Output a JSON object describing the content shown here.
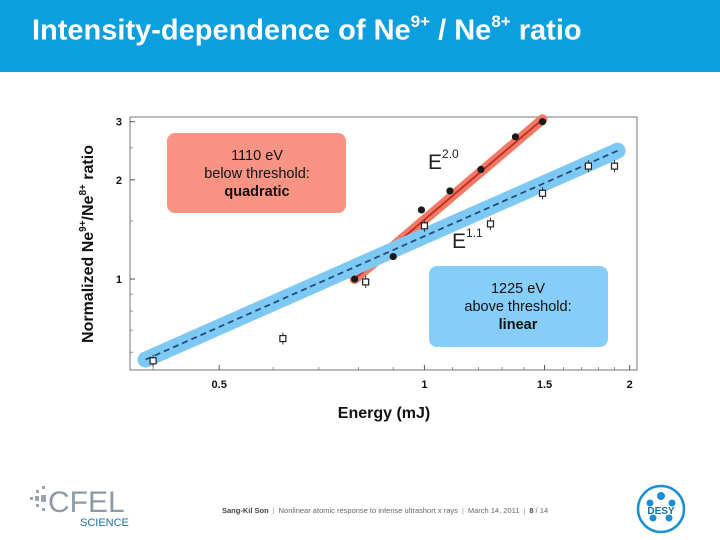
{
  "slide": {
    "title_main": "Intensity-dependence of Ne",
    "title_sup1": "9+",
    "title_mid": " / Ne",
    "title_sup2": "8+",
    "title_end": " ratio"
  },
  "colors": {
    "header_blue": "#0b9fe0",
    "quadratic_band": "#f07a68",
    "quadratic_line": "#c62a1e",
    "linear_band": "#7ec8f4",
    "linear_line": "#1f4e78",
    "box_quadratic": "#f99484",
    "box_linear": "#86cdf8"
  },
  "chart_data": {
    "type": "scatter",
    "xscale": "log",
    "yscale": "log",
    "xlim": [
      0.37,
      2.05
    ],
    "ylim": [
      0.53,
      3.1
    ],
    "xticks": [
      0.5,
      1,
      1.5,
      2
    ],
    "xtick_labels": [
      "0.5",
      "1",
      "1.5",
      "2"
    ],
    "yticks": [
      1,
      2,
      3
    ],
    "ytick_labels": [
      "1",
      "2",
      "3"
    ],
    "xlabel": "Energy (mJ)",
    "ylabel": {
      "main": "Normalized Ne",
      "sup1": "9+",
      "mid": "/Ne",
      "sup2": "8+",
      "end": " ratio"
    },
    "series": [
      {
        "label": "1110 eV",
        "marker": "filled-circle",
        "points": [
          [
            0.79,
            1.0
          ],
          [
            0.9,
            1.17
          ],
          [
            0.99,
            1.62
          ],
          [
            1.09,
            1.85
          ],
          [
            1.21,
            2.15
          ],
          [
            1.36,
            2.7
          ],
          [
            1.49,
            3.0
          ]
        ]
      },
      {
        "label": "1225 eV",
        "marker": "open-square",
        "points": [
          [
            0.4,
            0.565
          ],
          [
            0.62,
            0.66
          ],
          [
            0.82,
            0.98
          ],
          [
            1.0,
            1.45
          ],
          [
            1.25,
            1.47
          ],
          [
            1.49,
            1.82
          ],
          [
            1.74,
            2.2
          ],
          [
            1.9,
            2.2
          ]
        ]
      }
    ],
    "fits": [
      {
        "label": "E",
        "exponent": "2.0",
        "x": [
          0.79,
          1.49
        ],
        "y": [
          1.0,
          3.05
        ]
      },
      {
        "label": "E",
        "exponent": "1.1",
        "x": [
          0.39,
          1.92
        ],
        "y": [
          0.57,
          2.45
        ]
      }
    ],
    "annotations": [
      {
        "lines": [
          "1110 eV",
          "below threshold:"
        ],
        "bold": "quadratic"
      },
      {
        "lines": [
          "1225 eV",
          "above threshold:"
        ],
        "bold": "linear"
      }
    ]
  },
  "footer": {
    "author": "Sang-Kil Son",
    "talk": "Nonlinear atomic response to intense ultrashort x rays",
    "date": "March 14, 2011",
    "page": "8",
    "total": "/ 14"
  },
  "logos": {
    "cfel_top": "CFEL",
    "cfel_bottom": "SCIENCE",
    "desy": "DESY"
  }
}
